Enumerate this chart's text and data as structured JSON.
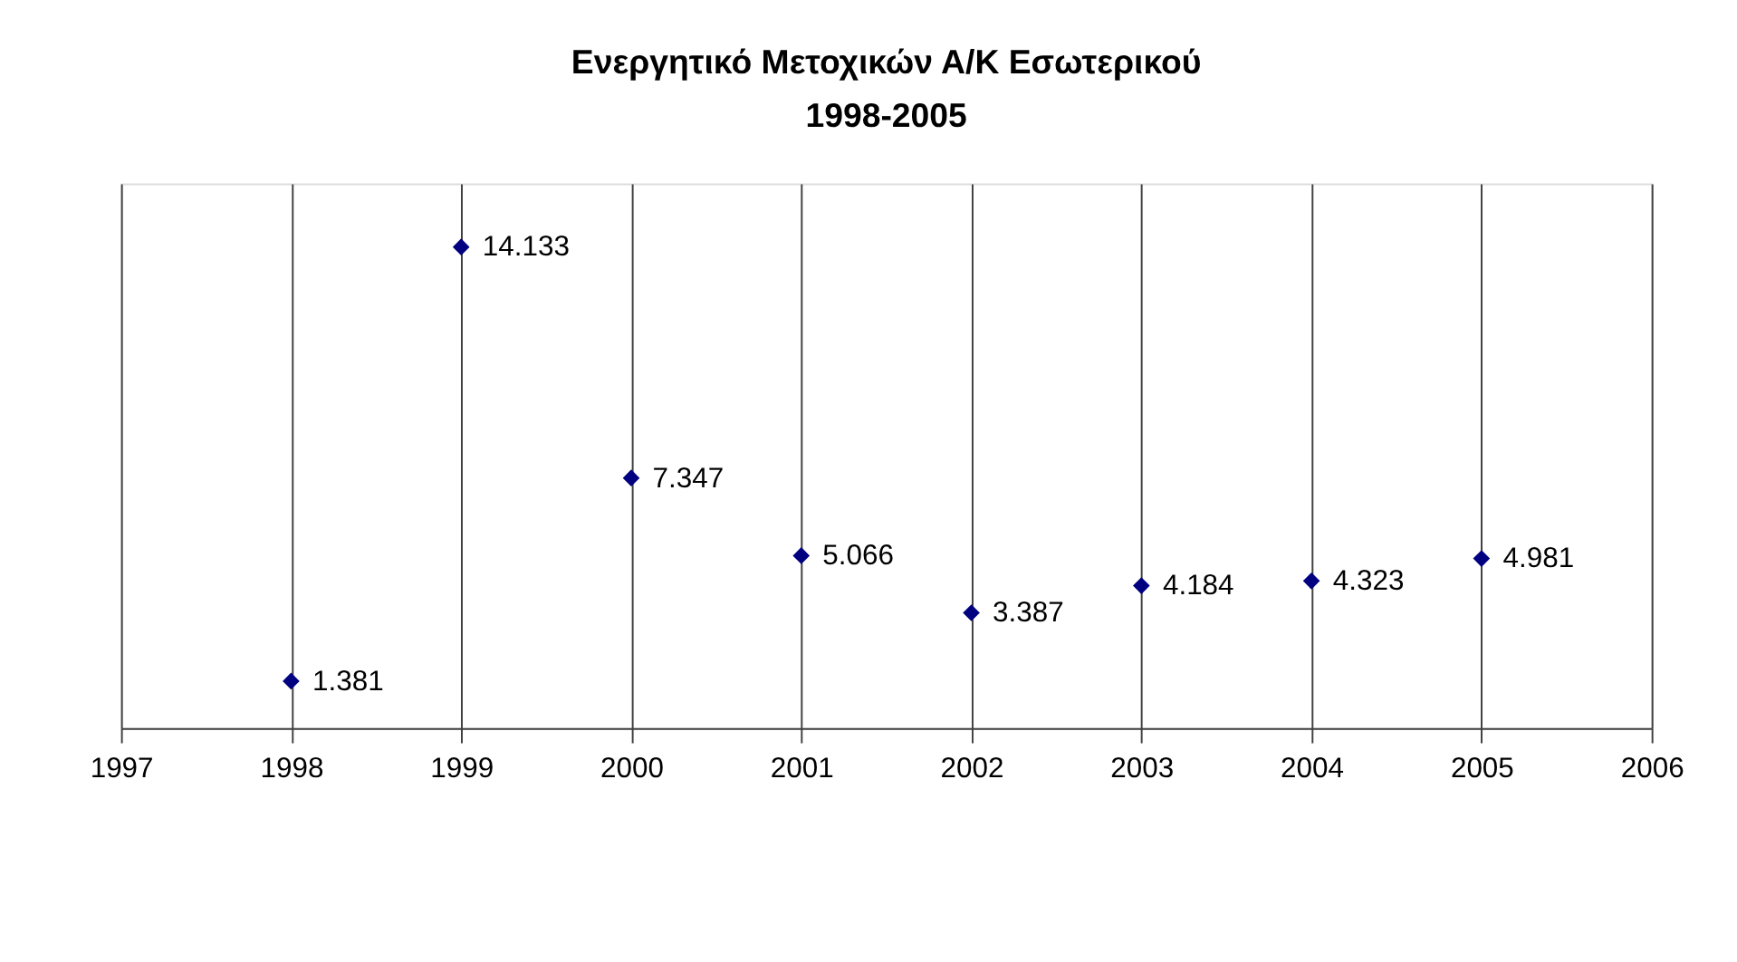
{
  "chart_data": {
    "type": "scatter",
    "title": "Ενεργητικό Μετοχικών Α/Κ Εσωτερικού",
    "subtitle": "1998-2005",
    "x": [
      1998,
      1999,
      2000,
      2001,
      2002,
      2003,
      2004,
      2005
    ],
    "series": [
      {
        "color": "#000080",
        "values": [
          1381,
          14133,
          7347,
          5066,
          3387,
          4184,
          4323,
          4981
        ],
        "value_labels": [
          "1.381",
          "14.133",
          "7.347",
          "5.066",
          "3.387",
          "4.184",
          "4.323",
          "4.981"
        ]
      }
    ],
    "xlim": [
      1997,
      2006
    ],
    "xticks": [
      1997,
      1998,
      1999,
      2000,
      2001,
      2002,
      2003,
      2004,
      2005,
      2006
    ],
    "ylim": [
      0,
      16000
    ],
    "tick_labels": "x",
    "grid": "x",
    "marker": "diamond",
    "legend": false
  }
}
